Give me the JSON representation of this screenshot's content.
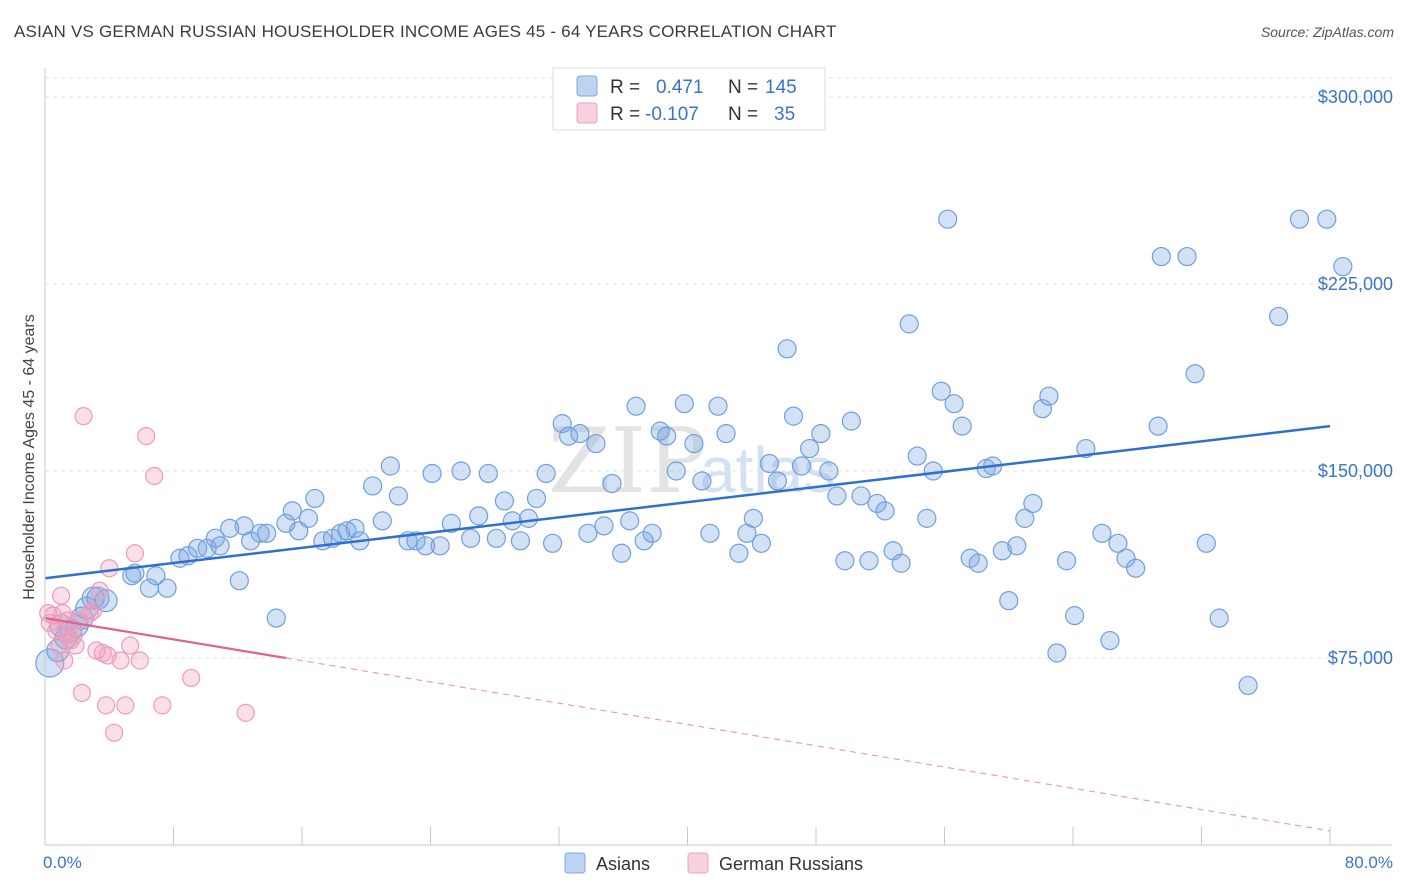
{
  "header": {
    "title": "ASIAN VS GERMAN RUSSIAN HOUSEHOLDER INCOME AGES 45 - 64 YEARS CORRELATION CHART",
    "source": "Source: ZipAtlas.com"
  },
  "watermark": {
    "zip": "ZIP",
    "atlas": "atlas"
  },
  "legend_box": {
    "rows": [
      {
        "r_label": "R =",
        "r_value": "0.471",
        "n_label": "N =",
        "n_value": "145",
        "color": "#7fa9e0"
      },
      {
        "r_label": "R =",
        "r_value": "-0.107",
        "n_label": "N =",
        "n_value": "35",
        "color": "#f0a0bd"
      }
    ]
  },
  "bottom_legend": {
    "items": [
      "Asians",
      "German Russians"
    ]
  },
  "chart_data": {
    "type": "scatter",
    "title": "ASIAN VS GERMAN RUSSIAN HOUSEHOLDER INCOME AGES 45 - 64 YEARS CORRELATION CHART",
    "xlabel": "",
    "ylabel": "Householder Income Ages 45 - 64 years",
    "xlim": [
      0,
      80
    ],
    "ylim": [
      0,
      310000
    ],
    "x_tick_labels": [
      "0.0%",
      "80.0%"
    ],
    "y_ticks": [
      75000,
      150000,
      225000,
      300000
    ],
    "y_tick_labels": [
      "$75,000",
      "$150,000",
      "$225,000",
      "$300,000"
    ],
    "grid": true,
    "legend_position": "top-center",
    "colors": {
      "asians": "#7fa9e0",
      "asians_line": "#2f6fce",
      "german_russians": "#f0a0bd",
      "german_russians_line": "#e0628f",
      "tick": "#3a74c6"
    },
    "series": [
      {
        "name": "Asians",
        "trend": {
          "x": [
            0,
            80
          ],
          "y": [
            107000,
            168000
          ]
        },
        "points": [
          [
            0.3,
            73000
          ],
          [
            0.8,
            78000
          ],
          [
            1.0,
            88000
          ],
          [
            1.3,
            83000
          ],
          [
            1.6,
            86000
          ],
          [
            2.0,
            88000
          ],
          [
            2.3,
            91000
          ],
          [
            2.6,
            95000
          ],
          [
            3.0,
            99000
          ],
          [
            3.3,
            99000
          ],
          [
            3.8,
            98000
          ],
          [
            5.4,
            108000
          ],
          [
            5.6,
            109000
          ],
          [
            6.5,
            103000
          ],
          [
            6.9,
            108000
          ],
          [
            7.6,
            103000
          ],
          [
            8.4,
            115000
          ],
          [
            8.9,
            116000
          ],
          [
            9.5,
            119000
          ],
          [
            10.1,
            119000
          ],
          [
            10.6,
            123000
          ],
          [
            10.9,
            120000
          ],
          [
            11.5,
            127000
          ],
          [
            12.1,
            106000
          ],
          [
            12.4,
            128000
          ],
          [
            12.8,
            122000
          ],
          [
            13.4,
            125000
          ],
          [
            13.8,
            125000
          ],
          [
            14.4,
            91000
          ],
          [
            15.0,
            129000
          ],
          [
            15.4,
            134000
          ],
          [
            15.8,
            126000
          ],
          [
            16.4,
            131000
          ],
          [
            16.8,
            139000
          ],
          [
            17.3,
            122000
          ],
          [
            17.9,
            123000
          ],
          [
            18.4,
            125000
          ],
          [
            18.8,
            126000
          ],
          [
            19.3,
            127000
          ],
          [
            19.6,
            122000
          ],
          [
            20.4,
            144000
          ],
          [
            21.0,
            130000
          ],
          [
            21.5,
            152000
          ],
          [
            22.0,
            140000
          ],
          [
            22.6,
            122000
          ],
          [
            23.1,
            122000
          ],
          [
            23.7,
            120000
          ],
          [
            24.1,
            149000
          ],
          [
            24.6,
            120000
          ],
          [
            25.3,
            129000
          ],
          [
            25.9,
            150000
          ],
          [
            26.5,
            123000
          ],
          [
            27.0,
            132000
          ],
          [
            27.6,
            149000
          ],
          [
            28.1,
            123000
          ],
          [
            28.6,
            138000
          ],
          [
            29.1,
            130000
          ],
          [
            29.6,
            122000
          ],
          [
            30.1,
            131000
          ],
          [
            30.6,
            139000
          ],
          [
            31.2,
            149000
          ],
          [
            31.6,
            121000
          ],
          [
            32.2,
            169000
          ],
          [
            32.6,
            164000
          ],
          [
            33.3,
            165000
          ],
          [
            33.8,
            125000
          ],
          [
            34.3,
            161000
          ],
          [
            34.8,
            128000
          ],
          [
            35.3,
            145000
          ],
          [
            35.9,
            117000
          ],
          [
            36.4,
            130000
          ],
          [
            36.8,
            176000
          ],
          [
            37.3,
            122000
          ],
          [
            37.8,
            125000
          ],
          [
            38.3,
            166000
          ],
          [
            38.7,
            164000
          ],
          [
            39.3,
            150000
          ],
          [
            39.8,
            177000
          ],
          [
            40.4,
            161000
          ],
          [
            40.9,
            146000
          ],
          [
            41.4,
            125000
          ],
          [
            41.9,
            176000
          ],
          [
            42.4,
            165000
          ],
          [
            43.2,
            117000
          ],
          [
            43.7,
            125000
          ],
          [
            44.1,
            131000
          ],
          [
            44.6,
            121000
          ],
          [
            45.1,
            153000
          ],
          [
            45.6,
            146000
          ],
          [
            46.2,
            199000
          ],
          [
            46.6,
            172000
          ],
          [
            47.1,
            152000
          ],
          [
            47.6,
            159000
          ],
          [
            48.3,
            165000
          ],
          [
            48.8,
            150000
          ],
          [
            49.3,
            140000
          ],
          [
            49.8,
            114000
          ],
          [
            50.2,
            170000
          ],
          [
            50.8,
            140000
          ],
          [
            51.3,
            114000
          ],
          [
            51.8,
            137000
          ],
          [
            52.3,
            134000
          ],
          [
            52.8,
            118000
          ],
          [
            53.3,
            113000
          ],
          [
            53.8,
            209000
          ],
          [
            54.3,
            156000
          ],
          [
            54.9,
            131000
          ],
          [
            55.3,
            150000
          ],
          [
            55.8,
            182000
          ],
          [
            56.2,
            251000
          ],
          [
            56.6,
            177000
          ],
          [
            57.1,
            168000
          ],
          [
            57.6,
            115000
          ],
          [
            58.1,
            113000
          ],
          [
            58.6,
            151000
          ],
          [
            59.0,
            152000
          ],
          [
            59.6,
            118000
          ],
          [
            60.0,
            98000
          ],
          [
            60.5,
            120000
          ],
          [
            61.0,
            131000
          ],
          [
            61.5,
            137000
          ],
          [
            62.1,
            175000
          ],
          [
            62.5,
            180000
          ],
          [
            63.0,
            77000
          ],
          [
            63.6,
            114000
          ],
          [
            64.1,
            92000
          ],
          [
            64.8,
            159000
          ],
          [
            65.8,
            125000
          ],
          [
            66.3,
            82000
          ],
          [
            66.8,
            121000
          ],
          [
            67.3,
            115000
          ],
          [
            67.9,
            111000
          ],
          [
            69.3,
            168000
          ],
          [
            69.5,
            236000
          ],
          [
            71.1,
            236000
          ],
          [
            71.6,
            189000
          ],
          [
            72.3,
            121000
          ],
          [
            73.1,
            91000
          ],
          [
            74.9,
            64000
          ],
          [
            76.8,
            212000
          ],
          [
            78.1,
            251000
          ],
          [
            79.8,
            251000
          ],
          [
            80.8,
            232000
          ]
        ]
      },
      {
        "name": "German Russians",
        "trend": {
          "x": [
            0,
            15
          ],
          "y": [
            91000,
            75000
          ]
        },
        "points": [
          [
            0.2,
            93000
          ],
          [
            0.3,
            89000
          ],
          [
            0.5,
            92000
          ],
          [
            0.7,
            86000
          ],
          [
            0.9,
            80000
          ],
          [
            1.0,
            100000
          ],
          [
            1.1,
            93000
          ],
          [
            1.2,
            74000
          ],
          [
            1.3,
            86000
          ],
          [
            1.4,
            90000
          ],
          [
            1.6,
            82000
          ],
          [
            1.8,
            84000
          ],
          [
            1.9,
            80000
          ],
          [
            2.1,
            90000
          ],
          [
            2.3,
            61000
          ],
          [
            2.4,
            172000
          ],
          [
            2.8,
            93000
          ],
          [
            3.0,
            94000
          ],
          [
            3.2,
            78000
          ],
          [
            3.4,
            102000
          ],
          [
            3.6,
            77000
          ],
          [
            3.8,
            56000
          ],
          [
            4.0,
            111000
          ],
          [
            4.3,
            45000
          ],
          [
            4.7,
            74000
          ],
          [
            5.0,
            56000
          ],
          [
            5.3,
            80000
          ],
          [
            5.6,
            117000
          ],
          [
            5.9,
            74000
          ],
          [
            6.3,
            164000
          ],
          [
            6.8,
            148000
          ],
          [
            7.3,
            56000
          ],
          [
            9.1,
            67000
          ],
          [
            12.5,
            53000
          ],
          [
            3.9,
            76000
          ]
        ]
      }
    ]
  }
}
